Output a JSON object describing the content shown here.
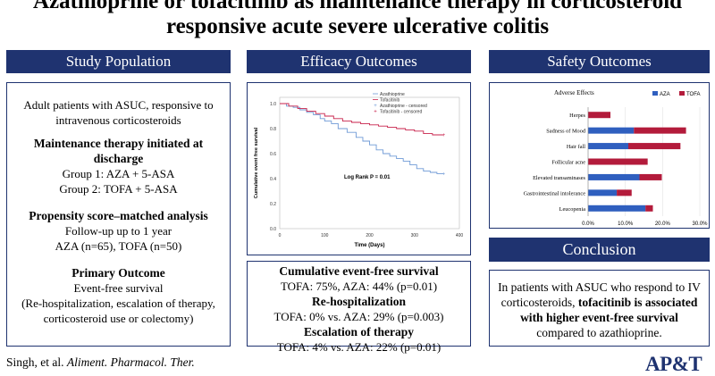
{
  "title": {
    "line1": "Azathioprine or tofacitinib as maintenance therapy in corticosteroid",
    "line2": "responsive acute severe ulcerative colitis"
  },
  "population": {
    "header": "Study Population",
    "intro": "Adult patients with ASUC, responsive to intravenous corticosteroids",
    "maint_heading": "Maintenance therapy initiated at discharge",
    "group1": "Group 1: AZA + 5-ASA",
    "group2": "Group 2: TOFA + 5-ASA",
    "psm_heading": "Propensity score–matched analysis",
    "followup": "Follow-up up to 1 year",
    "counts": "AZA (n=65), TOFA (n=50)",
    "outcome_heading": "Primary Outcome",
    "outcome": "Event-free survival",
    "outcome_detail": "(Re-hospitalization, escalation of therapy, corticosteroid use or colectomy)"
  },
  "efficacy": {
    "header": "Efficacy Outcomes",
    "h1": "Cumulative event-free survival",
    "v1": "TOFA: 75%, AZA: 44% (p=0.01)",
    "h2": "Re-hospitalization",
    "v2": "TOFA: 0% vs. AZA: 29% (p=0.003)",
    "h3": "Escalation of therapy",
    "v3": "TOFA: 4% vs. AZA: 22% (p=0.01)"
  },
  "safety": {
    "header": "Safety Outcomes"
  },
  "conclusion": {
    "header": "Conclusion",
    "pre": "In patients with ASUC who respond to IV corticosteroids, ",
    "bold": "tofacitinib is associated with higher event-free survival",
    "post": " compared to azathioprine."
  },
  "citation": {
    "authors": "Singh, et al. ",
    "journal": "Aliment. Pharmacol. Ther."
  },
  "logo": "AP&T",
  "colors": {
    "navy": "#1f3370",
    "aza": "#6f9ad6",
    "tofa": "#c8224b",
    "aza_bar": "#2f5fbf",
    "tofa_bar": "#b31b3b"
  },
  "chart_data": [
    {
      "type": "line",
      "ylabel": "Cumulative event free survival",
      "xlabel": "Time (Days)",
      "annotation": "Log Rank P = 0.01",
      "xticks": [
        "0",
        "100",
        "200",
        "300",
        "400"
      ],
      "yticks": [
        "0.0",
        "0.2",
        "0.4",
        "0.6",
        "0.8",
        "1.0"
      ],
      "xlim": [
        0,
        400
      ],
      "ylim": [
        0,
        1.05
      ],
      "legend": [
        "Azathioprine",
        "Tofacitinib",
        "Azathioprine - censored",
        "Tofacitinib - censored"
      ],
      "series": [
        {
          "name": "Azathioprine",
          "points": [
            [
              0,
              1.0
            ],
            [
              15,
              0.98
            ],
            [
              30,
              0.97
            ],
            [
              45,
              0.95
            ],
            [
              60,
              0.93
            ],
            [
              75,
              0.91
            ],
            [
              90,
              0.88
            ],
            [
              100,
              0.86
            ],
            [
              115,
              0.84
            ],
            [
              130,
              0.8
            ],
            [
              150,
              0.77
            ],
            [
              170,
              0.73
            ],
            [
              185,
              0.7
            ],
            [
              200,
              0.67
            ],
            [
              215,
              0.63
            ],
            [
              230,
              0.6
            ],
            [
              245,
              0.58
            ],
            [
              260,
              0.56
            ],
            [
              275,
              0.54
            ],
            [
              290,
              0.51
            ],
            [
              305,
              0.48
            ],
            [
              320,
              0.46
            ],
            [
              335,
              0.45
            ],
            [
              350,
              0.44
            ],
            [
              365,
              0.44
            ]
          ]
        },
        {
          "name": "Tofacitinib",
          "points": [
            [
              0,
              1.0
            ],
            [
              20,
              0.98
            ],
            [
              40,
              0.96
            ],
            [
              60,
              0.94
            ],
            [
              80,
              0.92
            ],
            [
              100,
              0.9
            ],
            [
              120,
              0.88
            ],
            [
              140,
              0.86
            ],
            [
              160,
              0.85
            ],
            [
              180,
              0.84
            ],
            [
              200,
              0.83
            ],
            [
              220,
              0.82
            ],
            [
              240,
              0.81
            ],
            [
              260,
              0.8
            ],
            [
              280,
              0.79
            ],
            [
              300,
              0.78
            ],
            [
              320,
              0.76
            ],
            [
              340,
              0.75
            ],
            [
              365,
              0.75
            ]
          ]
        }
      ]
    },
    {
      "type": "bar",
      "title": "Adverse Effects",
      "categories": [
        "Herpes",
        "Sadness of Mood",
        "Hair fall",
        "Follicular acne",
        "Elevated transaminases",
        "Gastrointestinal intolerance",
        "Leucopenia"
      ],
      "series": [
        {
          "name": "AZA",
          "values": [
            0,
            12.3,
            10.8,
            0,
            13.8,
            7.7,
            15.4
          ]
        },
        {
          "name": "TOFA",
          "values": [
            6.0,
            14.0,
            14.0,
            16.0,
            6.0,
            4.0,
            2.0
          ]
        }
      ],
      "xticks": [
        "0.0%",
        "10.0%",
        "20.0%",
        "30.0%"
      ],
      "xlim": [
        0,
        30
      ],
      "stacked": true,
      "legend_position": "top-right"
    }
  ]
}
